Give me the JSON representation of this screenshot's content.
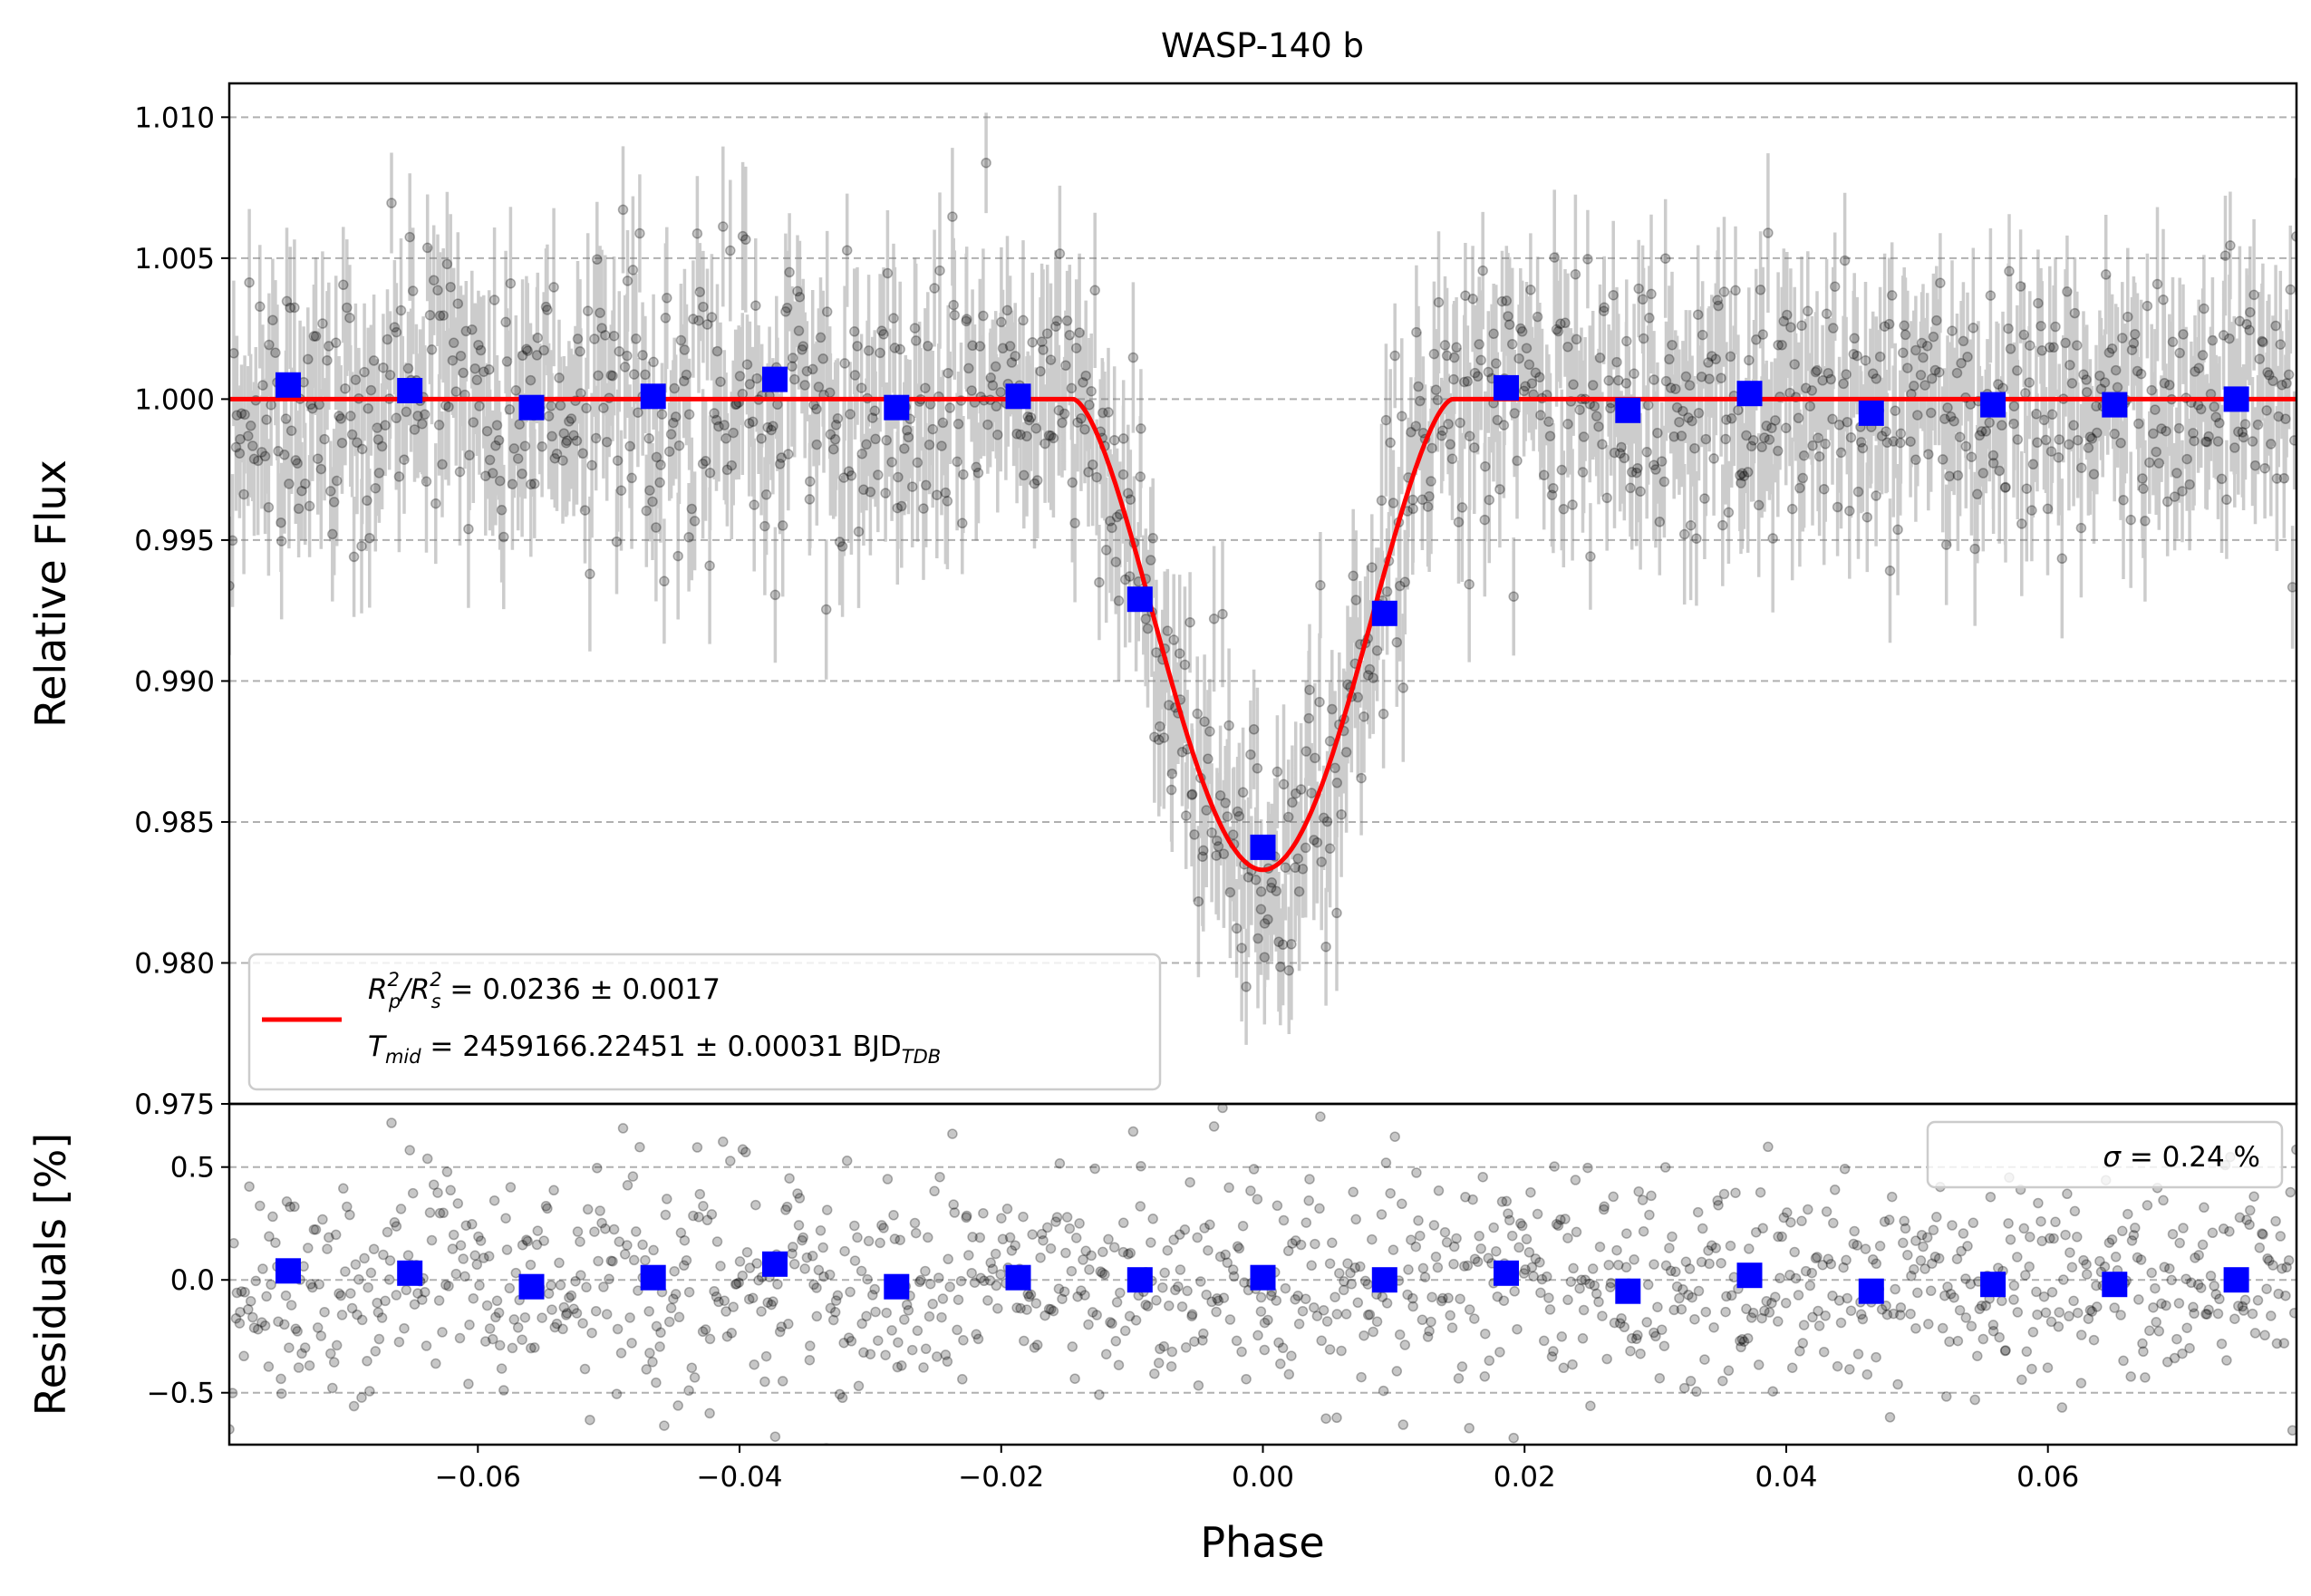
{
  "chart_data": [
    {
      "type": "scatter",
      "panel": "top",
      "title": "WASP-140 b",
      "xlabel": "",
      "ylabel": "Relative Flux",
      "xlim": [
        -0.079,
        0.079
      ],
      "ylim": [
        0.975,
        1.0112
      ],
      "ytick_values": [
        0.975,
        0.98,
        0.985,
        0.99,
        0.995,
        1.0,
        1.005,
        1.01
      ],
      "ytick_labels": [
        "0.975",
        "0.980",
        "0.985",
        "0.990",
        "0.995",
        "1.000",
        "1.005",
        "1.010"
      ],
      "grid": "horizontal dashed",
      "model": {
        "name": "transit model",
        "color": "#ff0000",
        "baseline": 1.0,
        "depth": 0.0167,
        "ingress_start": -0.0145,
        "egress_end": 0.0145,
        "t_mid": 0.0
      },
      "binned": {
        "name": "binned",
        "color": "#0000ff",
        "x": [
          -0.0745,
          -0.0652,
          -0.0559,
          -0.0466,
          -0.0373,
          -0.028,
          -0.0187,
          -0.0094,
          0.0,
          0.0093,
          0.0186,
          0.0279,
          0.0372,
          0.0465,
          0.0558,
          0.0651,
          0.0744
        ],
        "y": [
          1.0005,
          1.0003,
          0.9997,
          1.0001,
          1.0007,
          0.9997,
          1.0001,
          0.9929,
          0.9841,
          0.9924,
          1.0004,
          0.9996,
          1.0002,
          0.9995,
          0.9998,
          0.9998,
          1.0
        ]
      },
      "raw": {
        "name": "data",
        "color": "#000000",
        "n_points": 1200,
        "scatter_sigma": 0.0024,
        "errorbar": 0.0023
      },
      "legend": {
        "position": "lower-left",
        "line1_main": "R",
        "line1_sup1": "2",
        "line1_sub1": "p",
        "line1_mid": "/R",
        "line1_sup2": "2",
        "line1_sub2": "s",
        "line1_rest": " = 0.0236 ± 0.0017",
        "line2_main": "T",
        "line2_sub": "mid",
        "line2_rest": " = 2459166.22451 ± 0.00031 BJD",
        "line2_unit_sub": "TDB"
      }
    },
    {
      "type": "scatter",
      "panel": "bottom",
      "title": "",
      "xlabel": "Phase",
      "ylabel": "Residuals [%]",
      "xlim": [
        -0.079,
        0.079
      ],
      "ylim": [
        -0.73,
        0.78
      ],
      "ytick_values": [
        -0.5,
        0.0,
        0.5
      ],
      "ytick_labels": [
        "−0.5",
        "0.0",
        "0.5"
      ],
      "xtick_values": [
        -0.06,
        -0.04,
        -0.02,
        0.0,
        0.02,
        0.04,
        0.06
      ],
      "xtick_labels": [
        "−0.06",
        "−0.04",
        "−0.02",
        "0.00",
        "0.02",
        "0.04",
        "0.06"
      ],
      "grid": "horizontal dashed",
      "binned": {
        "name": "binned residuals",
        "color": "#0000ff",
        "x": [
          -0.0745,
          -0.0652,
          -0.0559,
          -0.0466,
          -0.0373,
          -0.028,
          -0.0187,
          -0.0094,
          0.0,
          0.0093,
          0.0186,
          0.0279,
          0.0372,
          0.0465,
          0.0558,
          0.0651,
          0.0744
        ],
        "y": [
          0.04,
          0.03,
          -0.03,
          0.01,
          0.07,
          -0.03,
          0.01,
          0.0,
          0.01,
          0.0,
          0.03,
          -0.05,
          0.02,
          -0.05,
          -0.02,
          -0.02,
          0.0
        ]
      },
      "raw": {
        "name": "residuals",
        "color": "#000000",
        "n_points": 1200,
        "scatter_sigma": 0.24
      },
      "legend": {
        "position": "upper-right",
        "sigma_symbol": "σ",
        "text": " = 0.24 %"
      }
    }
  ]
}
